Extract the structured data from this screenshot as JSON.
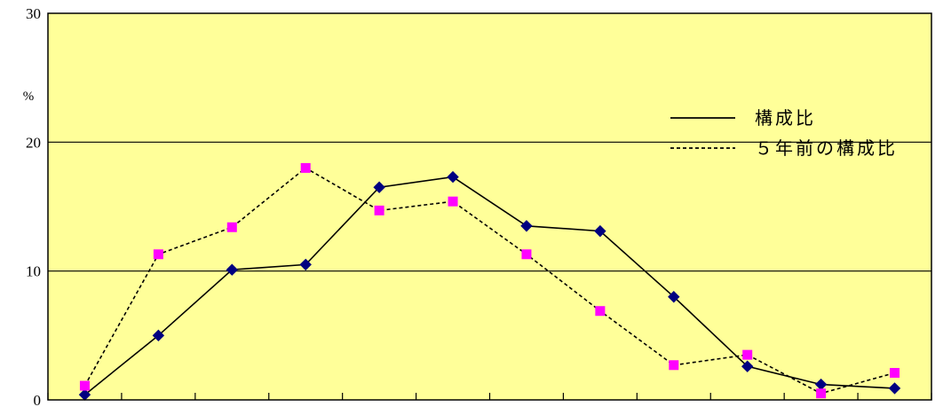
{
  "chart_data": {
    "type": "line",
    "title": "",
    "xlabel": "",
    "ylabel": "",
    "y_unit": "%",
    "ylim": [
      0,
      30
    ],
    "y_ticks": [
      0,
      10,
      20,
      30
    ],
    "grid": true,
    "legend_position": "top-right",
    "background_color": "#FFFF99",
    "x": [
      1,
      2,
      3,
      4,
      5,
      6,
      7,
      8,
      9,
      10,
      11,
      12
    ],
    "series": [
      {
        "name": "構成比",
        "line_style": "solid",
        "line_color": "#000000",
        "marker": "diamond",
        "marker_color": "#000080",
        "values": [
          0.4,
          5.0,
          10.1,
          10.5,
          16.5,
          17.3,
          13.5,
          13.1,
          8.0,
          2.6,
          1.2,
          0.9
        ]
      },
      {
        "name": "５年前の構成比",
        "line_style": "dashed",
        "line_color": "#000000",
        "marker": "square",
        "marker_color": "#FF00FF",
        "values": [
          1.1,
          11.3,
          13.4,
          18.0,
          14.7,
          15.4,
          11.3,
          6.9,
          2.7,
          3.5,
          0.5,
          2.1
        ]
      }
    ]
  }
}
